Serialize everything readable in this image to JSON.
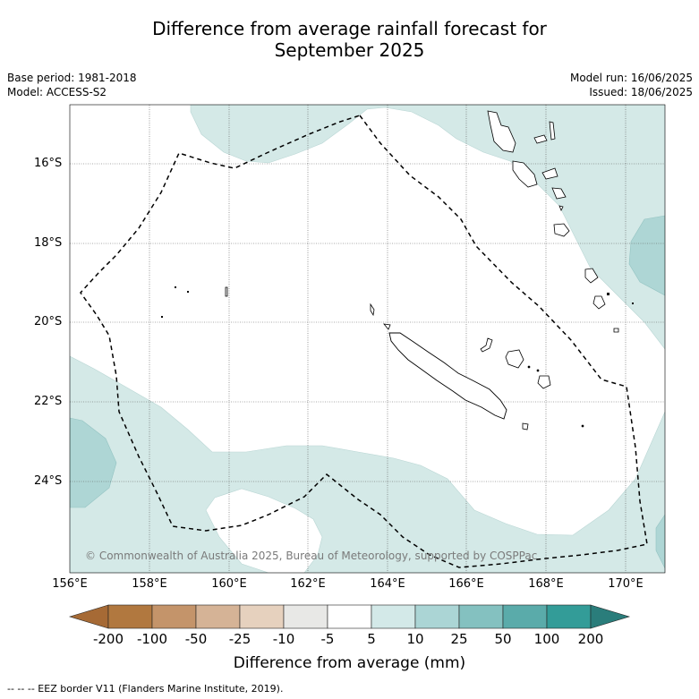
{
  "title_line1": "Difference from average rainfall forecast for",
  "title_line2": "September 2025",
  "base_period": "Base period: 1981-2018",
  "model": "Model: ACCESS-S2",
  "model_run": "Model run: 16/06/2025",
  "issued": "Issued: 18/06/2025",
  "lat_labels": [
    "16°S",
    "18°S",
    "20°S",
    "22°S",
    "24°S"
  ],
  "lon_labels": [
    "156°E",
    "158°E",
    "160°E",
    "162°E",
    "164°E",
    "166°E",
    "168°E",
    "170°E"
  ],
  "copyright": "© Commonwealth of Australia 2025, Bureau of Meteorology, supported by COSPPac",
  "colorbar": {
    "title": "Difference from average (mm)",
    "tick_labels": [
      "-200",
      "-100",
      "-50",
      "-25",
      "-10",
      "-5",
      "5",
      "10",
      "25",
      "50",
      "100",
      "200"
    ],
    "colors": [
      "#a66a35",
      "#b1783f",
      "#c4946a",
      "#d5b396",
      "#e6d1be",
      "#e8e8e6",
      "#ffffff",
      "#d3e9e8",
      "#abd5d5",
      "#84c1c0",
      "#5aabaa",
      "#339c98",
      "#2a7d7b"
    ]
  },
  "footnote": "--  --  -- EEZ border V11 (Flanders Marine Institute, 2019).",
  "map_colors": {
    "light_teal": "#d4e9e7",
    "mid_teal": "#aed6d5"
  }
}
